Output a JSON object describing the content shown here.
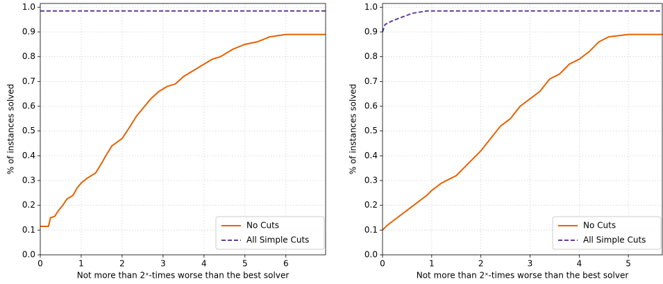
{
  "chart_data": [
    {
      "type": "line",
      "xlabel": "Not more than 2ˣ-times worse than the best solver",
      "ylabel": "% of instances solved",
      "xlim": [
        0,
        6.97
      ],
      "ylim": [
        0,
        1.015
      ],
      "xticks": [
        0,
        1,
        2,
        3,
        4,
        5,
        6
      ],
      "yticks": [
        {
          "value": 0,
          "label": "0.0"
        },
        0.1,
        0.2,
        0.3,
        0.4,
        0.5,
        0.6,
        0.7,
        0.8,
        0.9,
        {
          "value": 1,
          "label": "1.0"
        }
      ],
      "grid": true,
      "legend": "lower right",
      "series": [
        {
          "name": "No Cuts",
          "color": "#e66100",
          "linestyle": "solid",
          "x": [
            0,
            0.2,
            0.25,
            0.35,
            0.45,
            0.55,
            0.65,
            0.8,
            0.9,
            1.0,
            1.15,
            1.35,
            1.5,
            1.6,
            1.75,
            2.0,
            2.2,
            2.35,
            2.5,
            2.7,
            2.9,
            3.1,
            3.3,
            3.5,
            3.8,
            4.0,
            4.2,
            4.4,
            4.7,
            5.0,
            5.3,
            5.6,
            6.0,
            6.97
          ],
          "values": [
            0.115,
            0.115,
            0.15,
            0.155,
            0.18,
            0.2,
            0.225,
            0.24,
            0.27,
            0.29,
            0.31,
            0.33,
            0.37,
            0.4,
            0.44,
            0.47,
            0.52,
            0.56,
            0.59,
            0.63,
            0.66,
            0.68,
            0.69,
            0.72,
            0.75,
            0.77,
            0.79,
            0.8,
            0.83,
            0.85,
            0.86,
            0.88,
            0.89,
            0.89
          ]
        },
        {
          "name": "All Simple Cuts",
          "color": "#5e3c99",
          "linestyle": "dashed",
          "x": [
            0,
            6.97
          ],
          "values": [
            0.985,
            0.985
          ]
        }
      ]
    },
    {
      "type": "line",
      "xlabel": "Not more than 2ˣ-times worse than the best solver",
      "ylabel": "% of instances solved",
      "xlim": [
        0,
        5.69
      ],
      "ylim": [
        0,
        1.015
      ],
      "xticks": [
        0,
        1,
        2,
        3,
        4,
        5
      ],
      "yticks": [
        {
          "value": 0,
          "label": "0.0"
        },
        0.1,
        0.2,
        0.3,
        0.4,
        0.5,
        0.6,
        0.7,
        0.8,
        0.9,
        {
          "value": 1,
          "label": "1.0"
        }
      ],
      "grid": true,
      "legend": "lower right",
      "series": [
        {
          "name": "No Cuts",
          "color": "#e66100",
          "linestyle": "solid",
          "x": [
            0,
            0.1,
            0.3,
            0.5,
            0.7,
            0.9,
            1.0,
            1.2,
            1.5,
            1.7,
            2.0,
            2.2,
            2.4,
            2.6,
            2.8,
            3.0,
            3.2,
            3.4,
            3.6,
            3.8,
            4.0,
            4.2,
            4.4,
            4.6,
            5.0,
            5.69
          ],
          "values": [
            0.1,
            0.12,
            0.15,
            0.18,
            0.21,
            0.24,
            0.26,
            0.29,
            0.32,
            0.36,
            0.42,
            0.47,
            0.52,
            0.55,
            0.6,
            0.63,
            0.66,
            0.71,
            0.73,
            0.77,
            0.79,
            0.82,
            0.86,
            0.88,
            0.89,
            0.89
          ]
        },
        {
          "name": "All Simple Cuts",
          "color": "#5e3c99",
          "linestyle": "dashed",
          "x": [
            0,
            0.05,
            0.2,
            0.4,
            0.6,
            0.9,
            5.69
          ],
          "values": [
            0.9,
            0.93,
            0.945,
            0.96,
            0.975,
            0.985,
            0.985
          ]
        }
      ]
    }
  ]
}
